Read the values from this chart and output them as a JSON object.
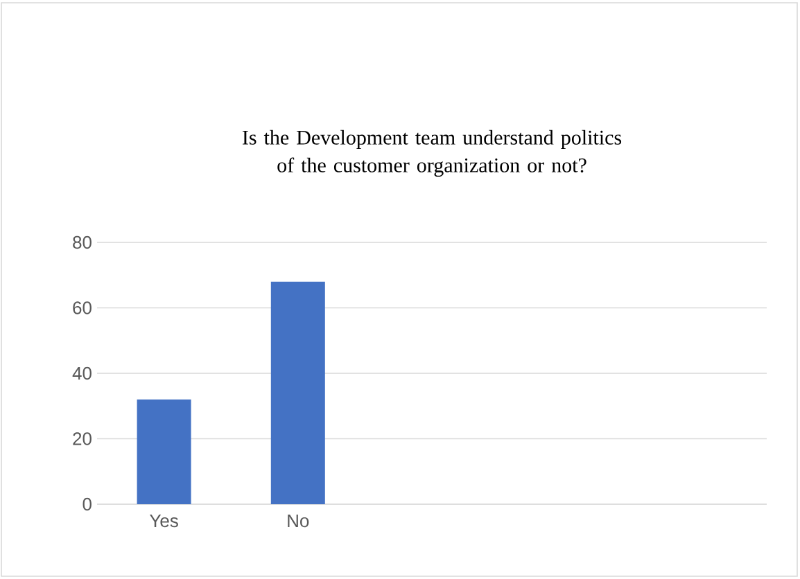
{
  "chart_data": {
    "type": "bar",
    "title": "Is the Development team understand politics of the customer organization or not?",
    "categories": [
      "Yes",
      "No",
      null,
      null,
      null
    ],
    "values": [
      32,
      68,
      null,
      null,
      null
    ],
    "color": "#4472c4",
    "ylim": [
      0,
      80
    ],
    "yticks": [
      0,
      20,
      40,
      60,
      80
    ],
    "grid": "y"
  }
}
